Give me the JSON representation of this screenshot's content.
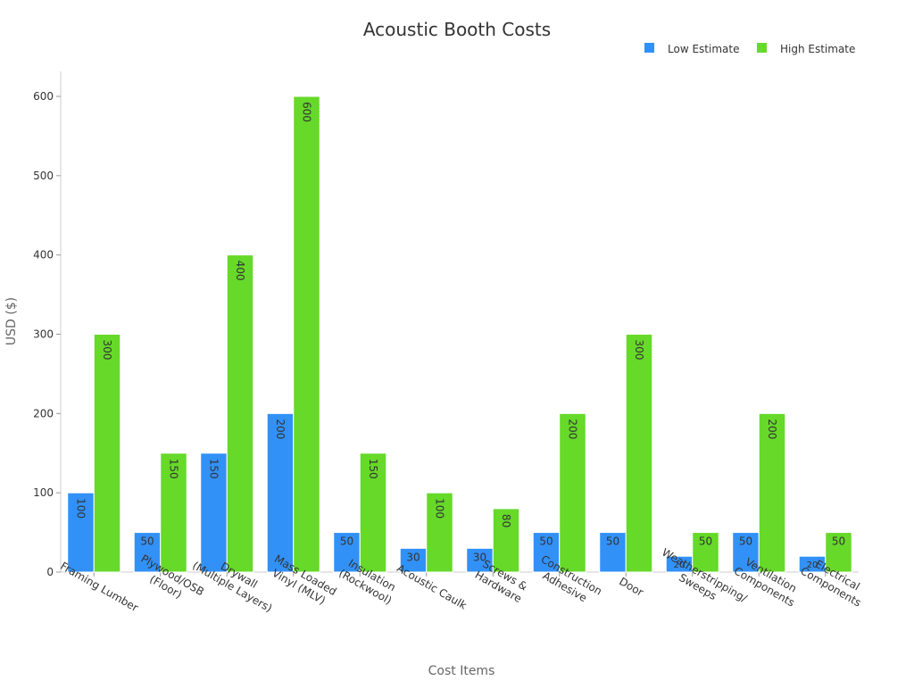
{
  "chart_data": {
    "type": "bar",
    "title": "Acoustic Booth Costs",
    "xlabel": "Cost Items",
    "ylabel": "USD ($)",
    "ylim": [
      0,
      630
    ],
    "yticks": [
      0,
      100,
      200,
      300,
      400,
      500,
      600
    ],
    "grid": false,
    "legend_position": "top-right",
    "categories": [
      "Framing Lumber",
      "Plywood/OSB\n(Floor)",
      "Drywall\n(Multiple Layers)",
      "Mass Loaded\nVinyl (MLV)",
      "Insulation\n(Rockwool)",
      "Acoustic Caulk",
      "Screws &\nHardware",
      "Construction\nAdhesive",
      "Door",
      "Weatherstripping/\nSweeps",
      "Ventilation\nComponents",
      "Electrical\nComponents"
    ],
    "series": [
      {
        "name": "Low Estimate",
        "color": "#3291f7",
        "values": [
          100,
          50,
          150,
          200,
          50,
          30,
          30,
          50,
          50,
          20,
          50,
          20
        ]
      },
      {
        "name": "High Estimate",
        "color": "#66d929",
        "values": [
          300,
          150,
          400,
          600,
          150,
          100,
          80,
          200,
          300,
          50,
          200,
          50
        ]
      }
    ]
  }
}
